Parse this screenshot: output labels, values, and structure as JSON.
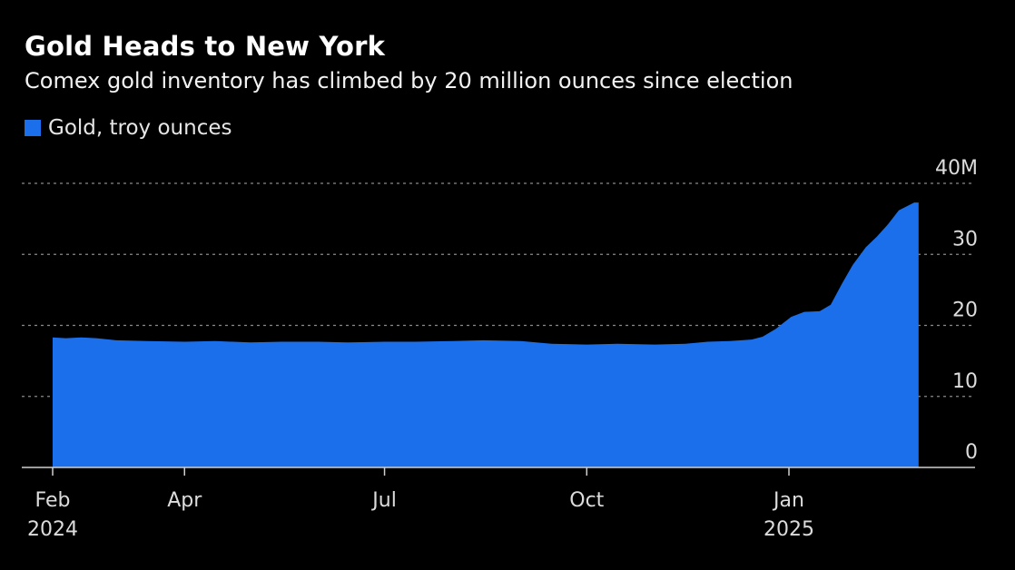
{
  "title": "Gold Heads to New York",
  "subtitle": "Comex gold inventory has climbed by 20 million ounces since election",
  "legend": {
    "label": "Gold, troy ounces"
  },
  "colors": {
    "series": "#1C6FEA",
    "background": "#000000",
    "grid": "#8a8a8a",
    "axis": "#cfcfcf",
    "text": "#dcdcdc"
  },
  "chart_data": {
    "type": "area",
    "title": "Gold Heads to New York",
    "subtitle": "Comex gold inventory has climbed by 20 million ounces since election",
    "xlabel": "",
    "ylabel": "",
    "ylim": [
      0,
      40
    ],
    "xlim": [
      "2024-02-01",
      "2025-03-31"
    ],
    "grid": true,
    "legend_position": "top-left",
    "y_axis_position": "right",
    "yticks": [
      {
        "value": 0,
        "label": "0"
      },
      {
        "value": 10,
        "label": "10"
      },
      {
        "value": 20,
        "label": "20"
      },
      {
        "value": 30,
        "label": "30"
      },
      {
        "value": 40,
        "label": "40M"
      }
    ],
    "xticks": [
      {
        "date": "2024-02-01",
        "label": "Feb",
        "sublabel": "2024"
      },
      {
        "date": "2024-04-01",
        "label": "Apr",
        "sublabel": ""
      },
      {
        "date": "2024-07-01",
        "label": "Jul",
        "sublabel": ""
      },
      {
        "date": "2024-10-01",
        "label": "Oct",
        "sublabel": ""
      },
      {
        "date": "2025-01-01",
        "label": "Jan",
        "sublabel": "2025"
      }
    ],
    "series": [
      {
        "name": "Gold, troy ounces",
        "unit": "million troy ounces",
        "points": [
          [
            "2024-02-01",
            18.3
          ],
          [
            "2024-02-07",
            18.2
          ],
          [
            "2024-02-14",
            18.3
          ],
          [
            "2024-02-21",
            18.2
          ],
          [
            "2024-03-01",
            17.9
          ],
          [
            "2024-03-15",
            17.8
          ],
          [
            "2024-04-01",
            17.7
          ],
          [
            "2024-04-15",
            17.8
          ],
          [
            "2024-05-01",
            17.6
          ],
          [
            "2024-05-15",
            17.7
          ],
          [
            "2024-06-01",
            17.7
          ],
          [
            "2024-06-15",
            17.6
          ],
          [
            "2024-07-01",
            17.7
          ],
          [
            "2024-07-15",
            17.7
          ],
          [
            "2024-08-01",
            17.8
          ],
          [
            "2024-08-15",
            17.9
          ],
          [
            "2024-09-01",
            17.8
          ],
          [
            "2024-09-15",
            17.4
          ],
          [
            "2024-10-01",
            17.3
          ],
          [
            "2024-10-15",
            17.4
          ],
          [
            "2024-11-01",
            17.3
          ],
          [
            "2024-11-15",
            17.4
          ],
          [
            "2024-11-25",
            17.7
          ],
          [
            "2024-12-05",
            17.8
          ],
          [
            "2024-12-15",
            18.0
          ],
          [
            "2024-12-20",
            18.4
          ],
          [
            "2024-12-26",
            19.5
          ],
          [
            "2025-01-02",
            21.2
          ],
          [
            "2025-01-08",
            21.9
          ],
          [
            "2025-01-15",
            22.0
          ],
          [
            "2025-01-20",
            22.9
          ],
          [
            "2025-01-25",
            25.8
          ],
          [
            "2025-01-30",
            28.5
          ],
          [
            "2025-02-05",
            31.0
          ],
          [
            "2025-02-10",
            32.5
          ],
          [
            "2025-02-15",
            34.2
          ],
          [
            "2025-02-20",
            36.2
          ],
          [
            "2025-02-27",
            37.3
          ],
          [
            "2025-03-01",
            37.3
          ]
        ]
      }
    ]
  }
}
